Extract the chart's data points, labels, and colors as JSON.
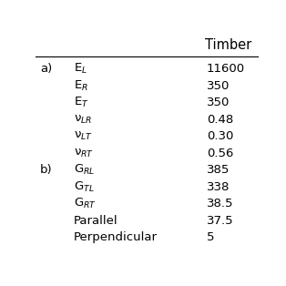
{
  "header": "Timber",
  "rows": [
    {
      "label": "E$_{L}$",
      "value": "11600",
      "group": "a"
    },
    {
      "label": "E$_{R}$",
      "value": "350",
      "group": "a"
    },
    {
      "label": "E$_{T}$",
      "value": "350",
      "group": "a"
    },
    {
      "label": "ν$_{LR}$",
      "value": "0.48",
      "group": "a"
    },
    {
      "label": "ν$_{LT}$",
      "value": "0.30",
      "group": "a"
    },
    {
      "label": "ν$_{RT}$",
      "value": "0.56",
      "group": "a"
    },
    {
      "label": "G$_{RL}$",
      "value": "385",
      "group": "b"
    },
    {
      "label": "G$_{TL}$",
      "value": "338",
      "group": "b"
    },
    {
      "label": "G$_{RT}$",
      "value": "38.5",
      "group": "b"
    },
    {
      "label": "Parallel",
      "value": "37.5",
      "group": "b"
    },
    {
      "label": "Perpendicular",
      "value": "5",
      "group": "b"
    }
  ],
  "bg_color": "#ffffff",
  "text_color": "#000000",
  "line_color": "#000000",
  "font_size": 9.5,
  "header_font_size": 10.5
}
